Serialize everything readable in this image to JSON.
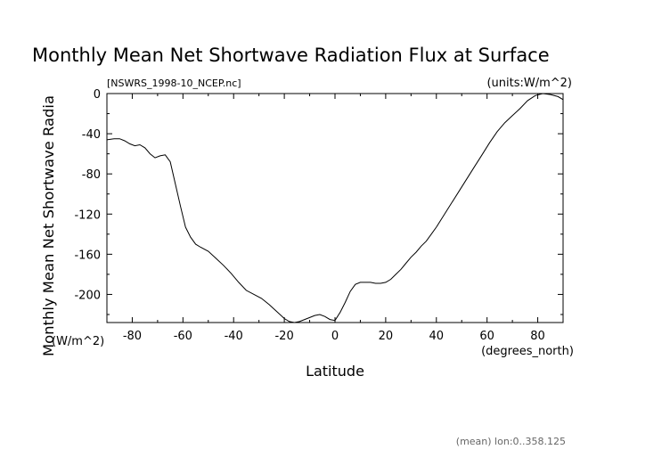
{
  "chart_data": {
    "type": "line",
    "title": "Monthly Mean Net Shortwave Radiation Flux at Surface",
    "subtitle_left": "[NSWRS_1998-10_NCEP.nc]",
    "subtitle_right": "(units:W/m^2)",
    "xlabel": "Latitude",
    "xunits": "(degrees_north)",
    "ylabel": "Monthly Mean Net Shortwave Radia",
    "yunits": "(W/m^2)",
    "footnote": "(mean) lon:0..358.125",
    "xlim": [
      -90,
      90
    ],
    "ylim": [
      -228,
      0
    ],
    "xticks": [
      -80,
      -60,
      -40,
      -20,
      0,
      20,
      40,
      60,
      80
    ],
    "yticks": [
      0,
      -40,
      -80,
      -120,
      -160,
      -200
    ],
    "grid": false,
    "series": [
      {
        "x": [
          -90,
          -87,
          -85,
          -83,
          -81,
          -79,
          -77,
          -75,
          -73,
          -71,
          -69,
          -67,
          -65,
          -63,
          -61,
          -59,
          -57,
          -55,
          -53,
          -50,
          -47,
          -44,
          -41,
          -38,
          -35,
          -32,
          -29,
          -26,
          -23,
          -20,
          -18,
          -16,
          -14,
          -12,
          -10,
          -8,
          -6,
          -4,
          -2,
          0,
          2,
          4,
          6,
          8,
          10,
          12,
          14,
          16,
          18,
          20,
          22,
          24,
          26,
          28,
          30,
          32,
          34,
          36,
          38,
          40,
          43,
          46,
          49,
          52,
          55,
          58,
          61,
          64,
          67,
          70,
          73,
          76,
          79,
          82,
          85,
          88,
          90
        ],
        "y": [
          -46,
          -45,
          -45,
          -47,
          -50,
          -52,
          -51,
          -54,
          -60,
          -64,
          -62,
          -61,
          -68,
          -90,
          -112,
          -133,
          -143,
          -150,
          -153,
          -157,
          -164,
          -171,
          -179,
          -188,
          -196,
          -200,
          -204,
          -210,
          -217,
          -224,
          -227,
          -228,
          -227,
          -225,
          -223,
          -221,
          -220,
          -222,
          -225,
          -226,
          -218,
          -208,
          -197,
          -190,
          -188,
          -188,
          -188,
          -189,
          -189,
          -188,
          -185,
          -180,
          -175,
          -169,
          -163,
          -158,
          -152,
          -147,
          -140,
          -133,
          -121,
          -109,
          -97,
          -85,
          -73,
          -61,
          -49,
          -38,
          -29,
          -22,
          -15,
          -7,
          -2,
          0,
          -1,
          -3,
          -6
        ]
      }
    ]
  }
}
